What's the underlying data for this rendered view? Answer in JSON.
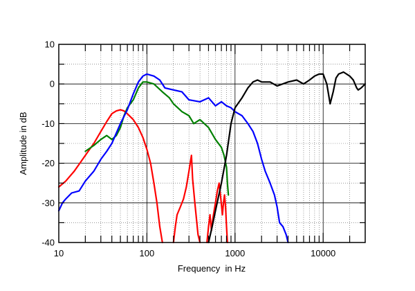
{
  "chart_data": {
    "type": "line",
    "title": "",
    "xlabel": "Frequency  in Hz",
    "ylabel": "Amplitude in dB",
    "x_scale": "log",
    "xlim": [
      10,
      30000
    ],
    "ylim": [
      -40,
      10
    ],
    "x_tick_labels": [
      {
        "value": 10,
        "label": "10"
      },
      {
        "value": 100,
        "label": "100"
      },
      {
        "value": 1000,
        "label": "1000"
      },
      {
        "value": 10000,
        "label": "10000"
      }
    ],
    "y_tick_labels": [
      {
        "value": 10,
        "label": "10"
      },
      {
        "value": 0,
        "label": "0"
      },
      {
        "value": -10,
        "label": "-10"
      },
      {
        "value": -20,
        "label": "-20"
      },
      {
        "value": -30,
        "label": "-30"
      },
      {
        "value": -40,
        "label": "-40"
      }
    ],
    "grid": true,
    "series": [
      {
        "name": "red",
        "color": "#ff0000",
        "points": [
          [
            10,
            -26
          ],
          [
            12,
            -24.5
          ],
          [
            15,
            -22
          ],
          [
            20,
            -18
          ],
          [
            25,
            -15
          ],
          [
            30,
            -12
          ],
          [
            35,
            -9.5
          ],
          [
            40,
            -7.5
          ],
          [
            45,
            -6.8
          ],
          [
            50,
            -6.5
          ],
          [
            55,
            -6.8
          ],
          [
            60,
            -7.5
          ],
          [
            70,
            -9
          ],
          [
            80,
            -11
          ],
          [
            90,
            -13.5
          ],
          [
            100,
            -16.5
          ],
          [
            110,
            -20
          ],
          [
            120,
            -25
          ],
          [
            130,
            -30
          ],
          [
            140,
            -36
          ],
          [
            150,
            -40
          ]
        ]
      },
      {
        "name": "red",
        "color": "#ff0000",
        "points": [
          [
            200,
            -40
          ],
          [
            210,
            -36
          ],
          [
            220,
            -33
          ],
          [
            240,
            -31
          ],
          [
            260,
            -29
          ],
          [
            280,
            -26
          ],
          [
            300,
            -22
          ],
          [
            320,
            -18
          ],
          [
            330,
            -24
          ],
          [
            350,
            -30
          ],
          [
            380,
            -38
          ],
          [
            400,
            -40
          ]
        ]
      },
      {
        "name": "red",
        "color": "#ff0000",
        "points": [
          [
            480,
            -40
          ],
          [
            500,
            -36
          ],
          [
            520,
            -33
          ],
          [
            540,
            -37
          ],
          [
            560,
            -34
          ],
          [
            600,
            -30
          ],
          [
            630,
            -27
          ],
          [
            660,
            -25
          ],
          [
            690,
            -29
          ],
          [
            720,
            -33
          ],
          [
            740,
            -30
          ],
          [
            760,
            -28
          ],
          [
            780,
            -31
          ],
          [
            800,
            -36
          ],
          [
            820,
            -40
          ]
        ]
      },
      {
        "name": "green",
        "color": "#008000",
        "points": [
          [
            20,
            -17
          ],
          [
            25,
            -15.5
          ],
          [
            30,
            -14
          ],
          [
            35,
            -13
          ],
          [
            40,
            -14
          ],
          [
            45,
            -13
          ],
          [
            50,
            -11
          ],
          [
            55,
            -8
          ],
          [
            60,
            -6
          ],
          [
            70,
            -4
          ],
          [
            80,
            -1
          ],
          [
            90,
            0.5
          ],
          [
            100,
            0.5
          ],
          [
            120,
            0
          ],
          [
            150,
            -2
          ],
          [
            180,
            -3.5
          ],
          [
            200,
            -5
          ],
          [
            250,
            -7
          ],
          [
            300,
            -8
          ],
          [
            340,
            -10
          ],
          [
            400,
            -9
          ],
          [
            500,
            -11
          ],
          [
            600,
            -14
          ],
          [
            700,
            -16
          ],
          [
            750,
            -18
          ],
          [
            800,
            -21
          ],
          [
            820,
            -25
          ],
          [
            840,
            -28
          ]
        ]
      },
      {
        "name": "blue",
        "color": "#0000ff",
        "points": [
          [
            10,
            -32
          ],
          [
            11,
            -30
          ],
          [
            12,
            -29
          ],
          [
            14,
            -27.5
          ],
          [
            17,
            -27
          ],
          [
            20,
            -24.5
          ],
          [
            25,
            -22
          ],
          [
            30,
            -19
          ],
          [
            35,
            -17
          ],
          [
            40,
            -15
          ],
          [
            50,
            -10
          ],
          [
            60,
            -6.5
          ],
          [
            70,
            -2.5
          ],
          [
            80,
            0.5
          ],
          [
            90,
            2
          ],
          [
            100,
            2.5
          ],
          [
            120,
            2
          ],
          [
            140,
            1
          ],
          [
            160,
            -1
          ],
          [
            200,
            -1.5
          ],
          [
            250,
            -2
          ],
          [
            300,
            -4
          ],
          [
            400,
            -4.5
          ],
          [
            500,
            -3.5
          ],
          [
            600,
            -5.5
          ],
          [
            700,
            -4.5
          ],
          [
            800,
            -5.5
          ],
          [
            900,
            -6
          ],
          [
            1000,
            -7
          ],
          [
            1200,
            -8
          ],
          [
            1400,
            -10
          ],
          [
            1600,
            -12
          ],
          [
            1800,
            -15
          ],
          [
            2000,
            -19
          ],
          [
            2200,
            -22
          ],
          [
            2500,
            -25
          ],
          [
            2800,
            -28
          ],
          [
            3000,
            -31
          ],
          [
            3200,
            -35
          ],
          [
            3500,
            -36
          ],
          [
            3800,
            -38
          ],
          [
            4000,
            -40
          ]
        ]
      },
      {
        "name": "black",
        "color": "#000000",
        "points": [
          [
            500,
            -40
          ],
          [
            550,
            -36
          ],
          [
            600,
            -32
          ],
          [
            700,
            -25
          ],
          [
            800,
            -18
          ],
          [
            900,
            -10
          ],
          [
            1000,
            -6
          ],
          [
            1200,
            -3.5
          ],
          [
            1400,
            -1
          ],
          [
            1600,
            0.5
          ],
          [
            1800,
            1
          ],
          [
            2000,
            0.5
          ],
          [
            2500,
            0.5
          ],
          [
            3000,
            -0.5
          ],
          [
            4000,
            0.5
          ],
          [
            5000,
            1
          ],
          [
            6000,
            0
          ],
          [
            7000,
            1
          ],
          [
            8000,
            2
          ],
          [
            9000,
            2.5
          ],
          [
            10000,
            2.5
          ],
          [
            11000,
            0
          ],
          [
            12000,
            -5
          ],
          [
            13000,
            -2
          ],
          [
            14000,
            1.5
          ],
          [
            15000,
            2.5
          ],
          [
            17000,
            3
          ],
          [
            20000,
            2
          ],
          [
            22000,
            1
          ],
          [
            24000,
            -1
          ],
          [
            25000,
            -1.5
          ],
          [
            27000,
            -1
          ],
          [
            30000,
            0
          ]
        ]
      }
    ]
  }
}
